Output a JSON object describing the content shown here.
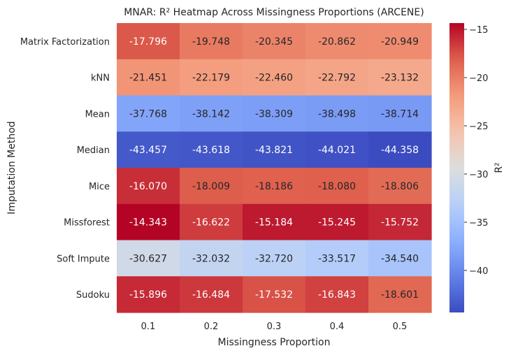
{
  "chart_data": {
    "type": "heatmap",
    "title": "MNAR: R² Heatmap Across Missingness Proportions (ARCENE)",
    "xlabel": "Missingness Proportion",
    "ylabel": "Imputation Method",
    "colorbar_label": "R²",
    "colormap": "coolwarm",
    "vmin": -44.358,
    "vmax": -14.343,
    "colorbar_ticks": [
      -40,
      -35,
      -30,
      -25,
      -20,
      -15
    ],
    "colorbar_tick_labels": [
      "−40",
      "−35",
      "−30",
      "−25",
      "−20",
      "−15"
    ],
    "x": [
      "0.1",
      "0.2",
      "0.3",
      "0.4",
      "0.5"
    ],
    "y": [
      "Matrix Factorization",
      "kNN",
      "Mean",
      "Median",
      "Mice",
      "Missforest",
      "Soft Impute",
      "Sudoku"
    ],
    "values": [
      [
        -17.796,
        -19.748,
        -20.345,
        -20.862,
        -20.949
      ],
      [
        -21.451,
        -22.179,
        -22.46,
        -22.792,
        -23.132
      ],
      [
        -37.768,
        -38.142,
        -38.309,
        -38.498,
        -38.714
      ],
      [
        -43.457,
        -43.618,
        -43.821,
        -44.021,
        -44.358
      ],
      [
        -16.07,
        -18.009,
        -18.186,
        -18.08,
        -18.806
      ],
      [
        -14.343,
        -16.622,
        -15.184,
        -15.245,
        -15.752
      ],
      [
        -30.627,
        -32.032,
        -32.72,
        -33.517,
        -34.54
      ],
      [
        -15.896,
        -16.484,
        -17.532,
        -16.843,
        -18.601
      ]
    ],
    "value_labels": [
      [
        "-17.796",
        "-19.748",
        "-20.345",
        "-20.862",
        "-20.949"
      ],
      [
        "-21.451",
        "-22.179",
        "-22.460",
        "-22.792",
        "-23.132"
      ],
      [
        "-37.768",
        "-38.142",
        "-38.309",
        "-38.498",
        "-38.714"
      ],
      [
        "-43.457",
        "-43.618",
        "-43.821",
        "-44.021",
        "-44.358"
      ],
      [
        "-16.070",
        "-18.009",
        "-18.186",
        "-18.080",
        "-18.806"
      ],
      [
        "-14.343",
        "-16.622",
        "-15.184",
        "-15.245",
        "-15.752"
      ],
      [
        "-30.627",
        "-32.032",
        "-32.720",
        "-33.517",
        "-34.540"
      ],
      [
        "-15.896",
        "-16.484",
        "-17.532",
        "-16.843",
        "-18.601"
      ]
    ],
    "grid": false
  }
}
